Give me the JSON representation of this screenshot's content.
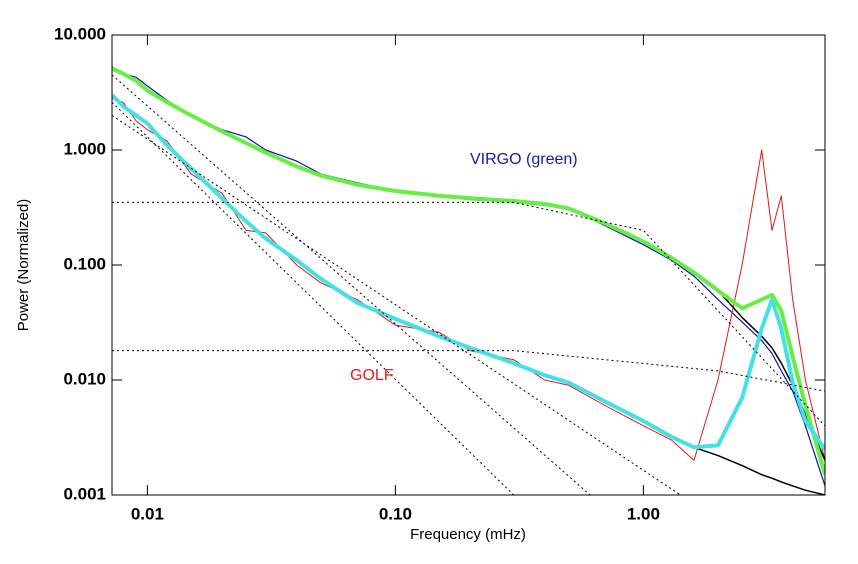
{
  "chart_data": {
    "type": "line",
    "xlabel": "Frequency (mHz)",
    "ylabel": "Power (Normalized)",
    "xscale": "log",
    "yscale": "log",
    "xlim": [
      0.0072,
      5.4
    ],
    "ylim": [
      0.001,
      10
    ],
    "xticks": [
      0.01,
      {
        "value": 0.1,
        "label": "0.10"
      },
      {
        "value": 1,
        "label": "1.00"
      }
    ],
    "yticks": [
      {
        "value": 10,
        "label": "10.000"
      },
      {
        "value": 1,
        "label": "1.000"
      },
      {
        "value": 0.1,
        "label": "0.100"
      },
      {
        "value": 0.01,
        "label": "0.010"
      },
      {
        "value": 0.001,
        "label": "0.001"
      }
    ],
    "annotations": [
      {
        "text": "VIRGO (green)",
        "color": "#1a1aa6"
      },
      {
        "text": "GOLF",
        "color": "#e02020"
      }
    ],
    "x": [
      0.0072,
      0.008,
      0.009,
      0.01,
      0.012,
      0.015,
      0.02,
      0.025,
      0.03,
      0.04,
      0.05,
      0.07,
      0.1,
      0.15,
      0.2,
      0.3,
      0.4,
      0.5,
      0.7,
      1.0,
      1.3,
      1.6,
      2.0,
      2.5,
      3.0,
      3.3,
      3.6,
      4.0,
      4.5,
      5.4
    ],
    "series": [
      {
        "color": "#1010b0",
        "width": 1.2,
        "values": [
          5.3,
          4.6,
          4.3,
          3.6,
          2.7,
          2.0,
          1.5,
          1.3,
          1.0,
          0.8,
          0.62,
          0.52,
          0.44,
          0.4,
          0.37,
          0.35,
          0.33,
          0.31,
          0.22,
          0.15,
          0.11,
          0.08,
          0.05,
          0.032,
          0.022,
          0.017,
          0.012,
          0.008,
          0.004,
          0.0012
        ]
      },
      {
        "color": "#e01818",
        "width": 1,
        "values": [
          2.8,
          2.6,
          1.8,
          1.5,
          1.2,
          0.62,
          0.42,
          0.2,
          0.19,
          0.1,
          0.07,
          0.05,
          0.03,
          0.026,
          0.018,
          0.015,
          0.01,
          0.009,
          0.006,
          0.004,
          0.003,
          0.002,
          0.01,
          0.1,
          1.0,
          0.2,
          0.4,
          0.05,
          0.01,
          0.002
        ]
      },
      {
        "color": "#000000",
        "width": 1.5,
        "values": [
          5.1,
          4.6,
          4.0,
          3.3,
          2.6,
          2.0,
          1.45,
          1.15,
          0.95,
          0.72,
          0.6,
          0.5,
          0.44,
          0.4,
          0.38,
          0.36,
          0.34,
          0.31,
          0.23,
          0.16,
          0.115,
          0.086,
          0.06,
          0.035,
          0.024,
          0.019,
          0.014,
          0.009,
          0.005,
          0.002
        ]
      },
      {
        "color": "#000000",
        "width": 1.5,
        "values": [
          3.0,
          2.4,
          2.0,
          1.7,
          1.1,
          0.69,
          0.38,
          0.24,
          0.17,
          0.11,
          0.076,
          0.047,
          0.034,
          0.024,
          0.019,
          0.014,
          0.011,
          0.0095,
          0.0065,
          0.0044,
          0.0032,
          0.0026,
          0.0022,
          0.0018,
          0.0015,
          0.0014,
          0.0013,
          0.0012,
          0.0011,
          0.001
        ]
      },
      {
        "color": "#66ee44",
        "width": 4,
        "values": [
          5.1,
          4.6,
          4.0,
          3.3,
          2.6,
          2.0,
          1.45,
          1.15,
          0.95,
          0.72,
          0.6,
          0.5,
          0.44,
          0.4,
          0.38,
          0.36,
          0.34,
          0.31,
          0.23,
          0.16,
          0.115,
          0.086,
          0.06,
          0.042,
          0.05,
          0.055,
          0.04,
          0.016,
          0.006,
          0.0015
        ]
      },
      {
        "color": "#44e0e8",
        "width": 4,
        "values": [
          3.0,
          2.4,
          2.0,
          1.7,
          1.1,
          0.69,
          0.38,
          0.24,
          0.17,
          0.11,
          0.076,
          0.047,
          0.034,
          0.024,
          0.019,
          0.014,
          0.011,
          0.0095,
          0.0065,
          0.0044,
          0.0032,
          0.0026,
          0.0027,
          0.007,
          0.028,
          0.05,
          0.028,
          0.0095,
          0.0044,
          0.0025
        ]
      },
      {
        "color": "#000000",
        "width": 1,
        "dash": true,
        "x": [
          0.0072,
          0.3,
          1.0,
          5.4
        ],
        "values": [
          0.35,
          0.35,
          0.2,
          0.004
        ]
      },
      {
        "color": "#000000",
        "width": 1,
        "dash": true,
        "x": [
          0.0072,
          0.3,
          2.0,
          5.4
        ],
        "values": [
          0.018,
          0.018,
          0.012,
          0.008
        ]
      },
      {
        "color": "#000000",
        "width": 1,
        "dash": true,
        "x": [
          0.0072,
          0.61
        ],
        "values": [
          4.5,
          0.001
        ]
      },
      {
        "color": "#000000",
        "width": 1,
        "dash": true,
        "x": [
          0.0072,
          0.3
        ],
        "values": [
          2.6,
          0.001
        ]
      },
      {
        "color": "#000000",
        "width": 1,
        "dash": true,
        "x": [
          0.0072,
          1.41
        ],
        "values": [
          2.0,
          0.001
        ]
      }
    ]
  }
}
